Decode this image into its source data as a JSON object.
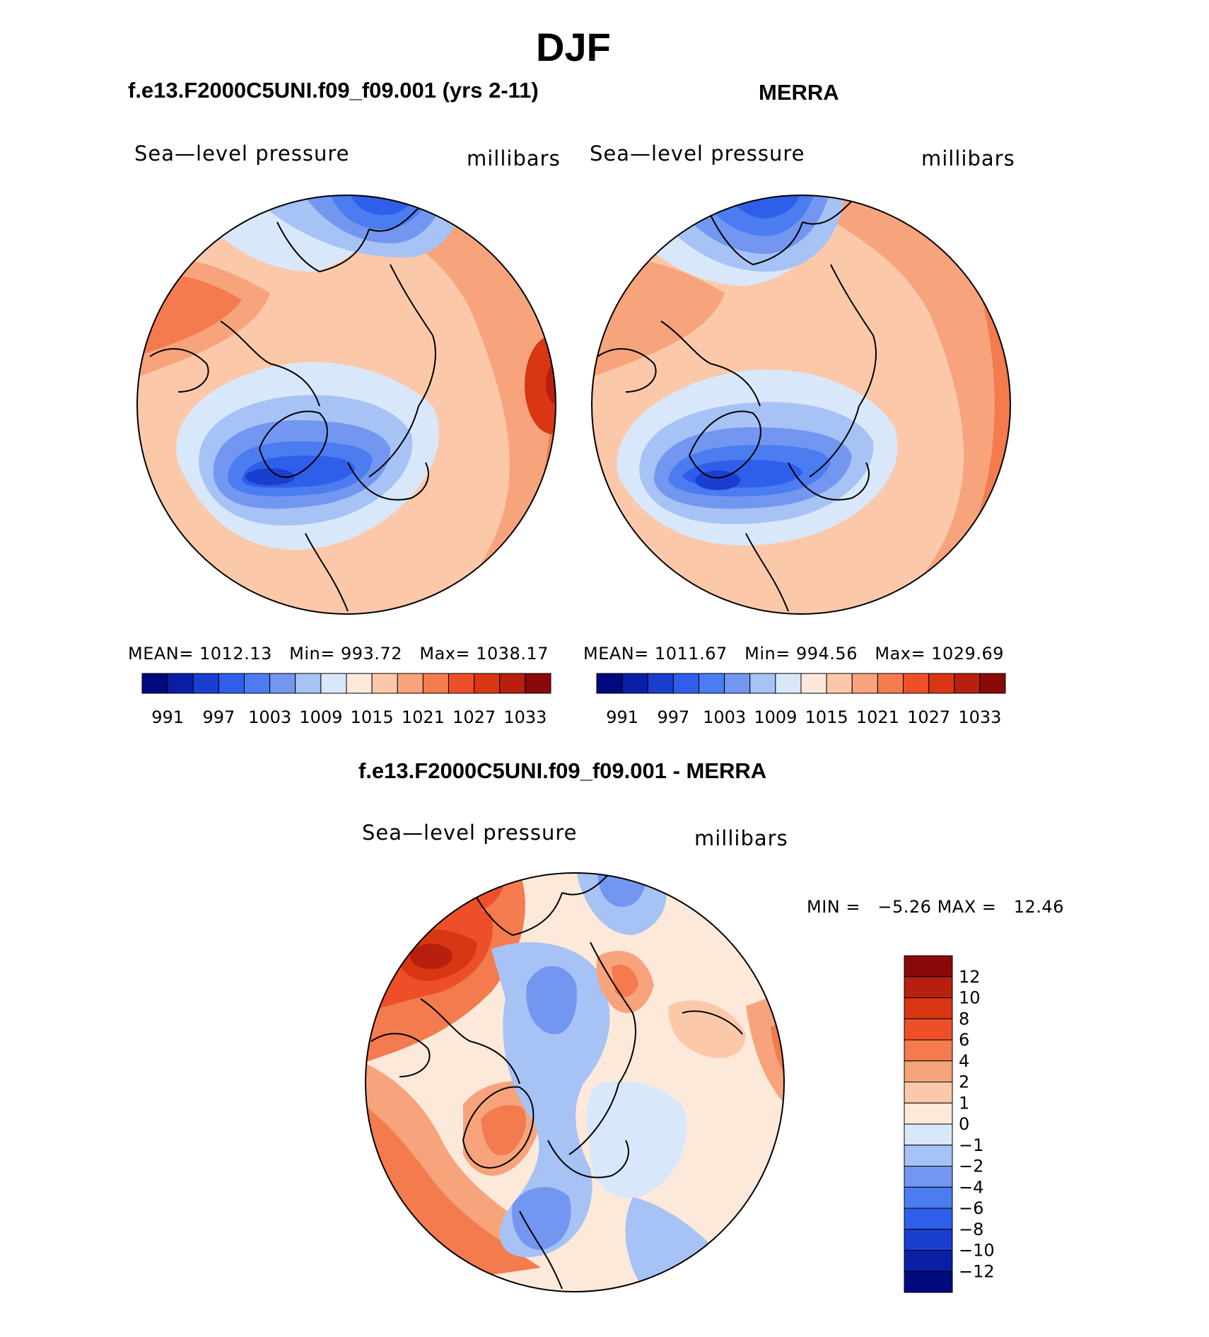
{
  "title": "DJF",
  "panels": [
    {
      "id": "model",
      "title": "f.e13.F2000C5UNI.f09_f09.001 (yrs 2-11)",
      "variable": "Sea—level pressure",
      "units": "millibars",
      "stats": {
        "mean_label": "MEAN=",
        "mean": "1012.13",
        "min_label": "Min=",
        "min": "993.72",
        "max_label": "Max=",
        "max": "1038.17"
      }
    },
    {
      "id": "obs",
      "title": "MERRA",
      "variable": "Sea—level pressure",
      "units": "millibars",
      "stats": {
        "mean_label": "MEAN=",
        "mean": "1011.67",
        "min_label": "Min=",
        "min": "994.56",
        "max_label": "Max=",
        "max": "1029.69"
      }
    }
  ],
  "diff_panel": {
    "title": "f.e13.F2000C5UNI.f09_f09.001 - MERRA",
    "variable": "Sea—level pressure",
    "units": "millibars",
    "stats": {
      "min_label": "MIN =",
      "min": "−5.26",
      "max_label": "MAX =",
      "max": "12.46"
    }
  },
  "chart_data": [
    {
      "type": "heatmap",
      "projection": "north polar stereographic",
      "title": "f.e13.F2000C5UNI.f09_f09.001 (yrs 2-11)",
      "variable": "Sea-level pressure",
      "units": "millibars",
      "mean": 1012.13,
      "min": 993.72,
      "max": 1038.17,
      "colorbar_ticks": [
        "991",
        "997",
        "1003",
        "1009",
        "1015",
        "1021",
        "1027",
        "1033"
      ],
      "colorbar_colors": [
        "#000a7c",
        "#0a1fa8",
        "#1a3fd0",
        "#2f5fea",
        "#4b7cf0",
        "#7396f1",
        "#a7c2f5",
        "#d8e8fa",
        "#fde9da",
        "#fbc9aa",
        "#f7a47c",
        "#f37b4e",
        "#ed5028",
        "#d93614",
        "#b81f0e",
        "#8a0a0a"
      ]
    },
    {
      "type": "heatmap",
      "projection": "north polar stereographic",
      "title": "MERRA",
      "variable": "Sea-level pressure",
      "units": "millibars",
      "mean": 1011.67,
      "min": 994.56,
      "max": 1029.69,
      "colorbar_ticks": [
        "991",
        "997",
        "1003",
        "1009",
        "1015",
        "1021",
        "1027",
        "1033"
      ],
      "colorbar_colors": [
        "#000a7c",
        "#0a1fa8",
        "#1a3fd0",
        "#2f5fea",
        "#4b7cf0",
        "#7396f1",
        "#a7c2f5",
        "#d8e8fa",
        "#fde9da",
        "#fbc9aa",
        "#f7a47c",
        "#f37b4e",
        "#ed5028",
        "#d93614",
        "#b81f0e",
        "#8a0a0a"
      ]
    },
    {
      "type": "heatmap",
      "projection": "north polar stereographic",
      "title": "f.e13.F2000C5UNI.f09_f09.001 - MERRA",
      "variable": "Sea-level pressure",
      "units": "millibars",
      "min": -5.26,
      "max": 12.46,
      "colorbar_ticks": [
        "12",
        "10",
        "8",
        "6",
        "4",
        "2",
        "1",
        "0",
        "−1",
        "−2",
        "−4",
        "−6",
        "−8",
        "−10",
        "−12"
      ],
      "colorbar_colors": [
        "#8a0a0a",
        "#b81f0e",
        "#d93614",
        "#ed5028",
        "#f37b4e",
        "#f7a47c",
        "#fbc9aa",
        "#fde9da",
        "#d8e8fa",
        "#a7c2f5",
        "#7396f1",
        "#4b7cf0",
        "#2f5fea",
        "#1a3fd0",
        "#0a1fa8",
        "#000a7c"
      ]
    }
  ]
}
